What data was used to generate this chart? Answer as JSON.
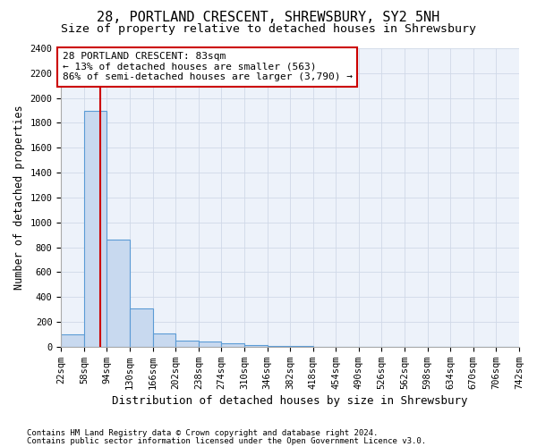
{
  "title": "28, PORTLAND CRESCENT, SHREWSBURY, SY2 5NH",
  "subtitle": "Size of property relative to detached houses in Shrewsbury",
  "xlabel": "Distribution of detached houses by size in Shrewsbury",
  "ylabel": "Number of detached properties",
  "footnote1": "Contains HM Land Registry data © Crown copyright and database right 2024.",
  "footnote2": "Contains public sector information licensed under the Open Government Licence v3.0.",
  "bar_edges": [
    22,
    58,
    94,
    130,
    166,
    202,
    238,
    274,
    310,
    346,
    382,
    418,
    454,
    490,
    526,
    562,
    598,
    634,
    670,
    706,
    742
  ],
  "bar_heights": [
    100,
    1900,
    860,
    310,
    110,
    50,
    40,
    30,
    10,
    5,
    5,
    0,
    0,
    0,
    0,
    0,
    0,
    0,
    0,
    0
  ],
  "bar_color": "#c8d9ef",
  "bar_edge_color": "#5b9bd5",
  "property_size": 83,
  "property_line_color": "#cc0000",
  "annotation_text": "28 PORTLAND CRESCENT: 83sqm\n← 13% of detached houses are smaller (563)\n86% of semi-detached houses are larger (3,790) →",
  "annotation_box_color": "#cc0000",
  "ylim": [
    0,
    2400
  ],
  "yticks": [
    0,
    200,
    400,
    600,
    800,
    1000,
    1200,
    1400,
    1600,
    1800,
    2000,
    2200,
    2400
  ],
  "title_fontsize": 11,
  "subtitle_fontsize": 9.5,
  "xlabel_fontsize": 9,
  "ylabel_fontsize": 8.5,
  "tick_fontsize": 7.5,
  "annotation_fontsize": 8,
  "footnote_fontsize": 6.5,
  "bg_color": "#edf2fa",
  "grid_color": "#d0d8e8"
}
